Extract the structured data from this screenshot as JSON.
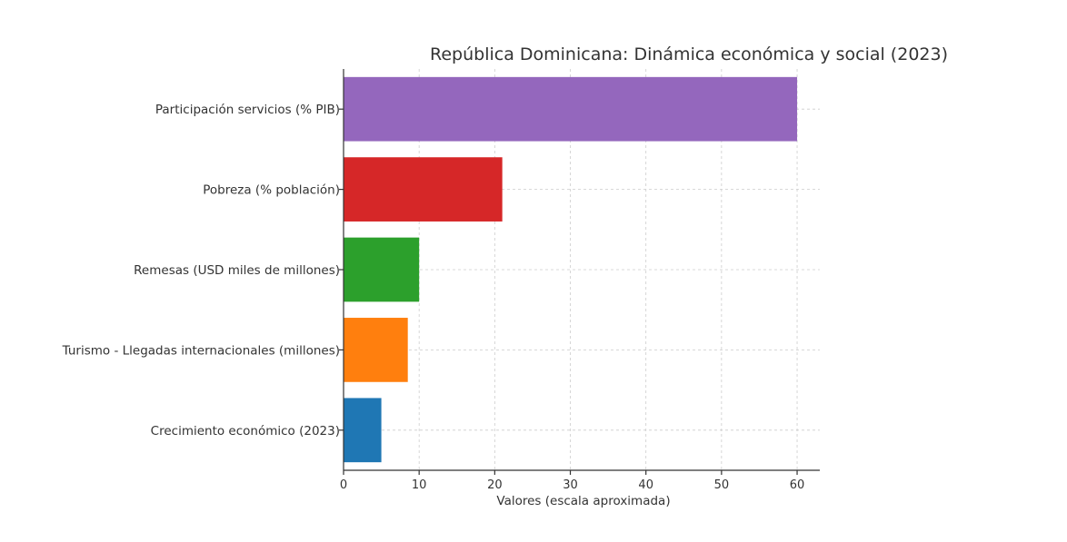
{
  "chart_data": {
    "type": "bar",
    "orientation": "horizontal",
    "title": "República Dominicana: Dinámica económica y social (2023)",
    "xlabel": "Valores (escala aproximada)",
    "ylabel": "",
    "xlim": [
      0,
      63
    ],
    "xticks": [
      0,
      10,
      20,
      30,
      40,
      50,
      60
    ],
    "grid": true,
    "categories": [
      "Crecimiento económico (2023)",
      "Turismo - Llegadas internacionales (millones)",
      "Remesas (USD miles de millones)",
      "Pobreza (% población)",
      "Participación servicios (% PIB)"
    ],
    "values": [
      5,
      8.5,
      10,
      21,
      60
    ],
    "colors": [
      "#1f77b4",
      "#ff7f0e",
      "#2ca02c",
      "#d62728",
      "#9467bd"
    ]
  }
}
